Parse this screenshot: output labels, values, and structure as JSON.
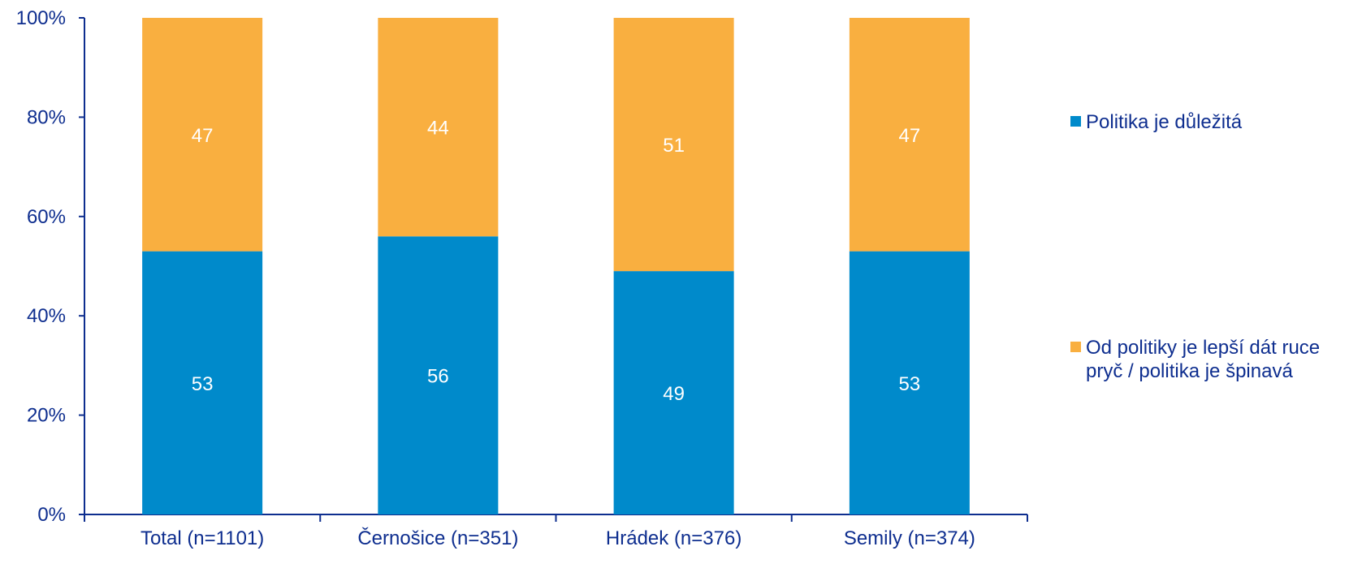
{
  "chart_data": {
    "type": "bar",
    "stacked": true,
    "percent": true,
    "categories": [
      "Total (n=1101)",
      "Černošice (n=351)",
      "Hrádek (n=376)",
      "Semily (n=374)"
    ],
    "series": [
      {
        "name": "Politika je důležitá",
        "values": [
          53,
          56,
          49,
          53
        ],
        "color": "#008ACB"
      },
      {
        "name": "Od politiky je lepší dát ruce pryč / politika je špinavá",
        "values": [
          47,
          44,
          51,
          47
        ],
        "color": "#F9AF40"
      }
    ],
    "ylim": [
      0,
      100
    ],
    "yticks": [
      "0%",
      "20%",
      "40%",
      "60%",
      "80%",
      "100%"
    ],
    "grid": false,
    "legend_position": "right",
    "axis_color": "#0E2E8F",
    "label_color": "#FFFFFF"
  },
  "legend": {
    "items": [
      {
        "label": "Politika je důležitá",
        "color": "#008ACB"
      },
      {
        "label": "Od politiky je lepší dát ruce pryč / politika je špinavá",
        "color": "#F9AF40"
      }
    ]
  }
}
